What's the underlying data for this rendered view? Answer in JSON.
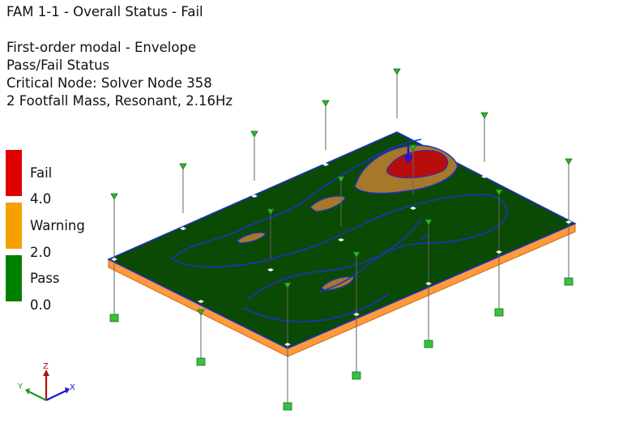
{
  "header": {
    "title": "FAM 1-1 - Overall Status - Fail",
    "analysis": "First-order modal - Envelope",
    "result": "Pass/Fail Status",
    "critical_node": "Critical Node: Solver Node 358",
    "mode": "2 Footfall Mass, Resonant, 2.16Hz"
  },
  "legend": {
    "bands": [
      {
        "label": "Fail",
        "color": "#e00000"
      },
      {
        "label": "Warning",
        "color": "#f5a000"
      },
      {
        "label": "Pass",
        "color": "#008000"
      }
    ],
    "thresholds": [
      "4.0",
      "2.0",
      "0.0"
    ]
  },
  "colors": {
    "slab_pass": "#0b4a04",
    "contour_line": "#1f2fd0",
    "warning_fill": "#a5782a",
    "fail_fill": "#b80d0d",
    "slab_edge": "#ff9a3c",
    "support_green": "#37c23d",
    "marker_green": "#2fb52f"
  },
  "triad": {
    "x": "X",
    "y": "Y",
    "z": "Z"
  }
}
